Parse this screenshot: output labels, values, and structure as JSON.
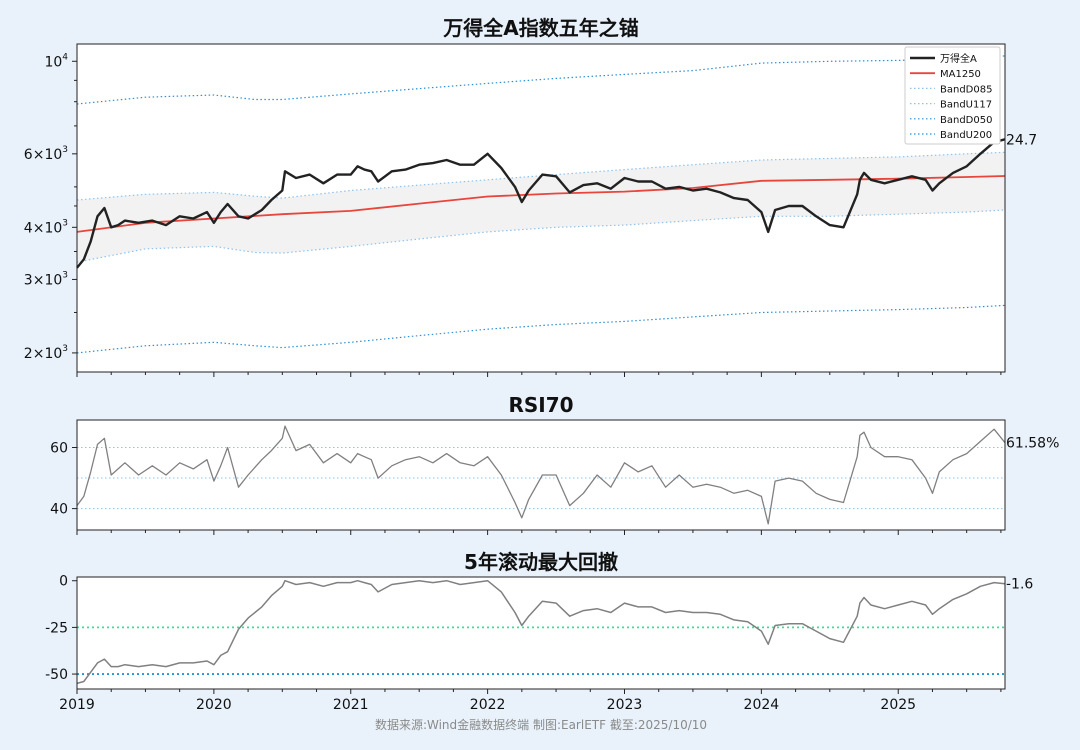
{
  "source_note": "数据来源:Wind金融数据终端  制图:EarlETF 截至:2025/10/10",
  "colors": {
    "index": "#222222",
    "ma": "#e8453c",
    "band_inner": "#8ec3ee",
    "band_outer": "#2a8fd6",
    "rsi": "#808080",
    "dd": "#808080",
    "dd_ref1": "#3ddc97",
    "dd_ref2": "#1f95d6",
    "band_fill": "#f2f2f2"
  },
  "chart_data": [
    {
      "type": "line",
      "title": "万得全A指数五年之锚",
      "yscale": "log",
      "ylim": [
        1800,
        11000
      ],
      "y_ticks": [
        {
          "value": 2000,
          "mant": "2",
          "exp": "3"
        },
        {
          "value": 3000,
          "mant": "3",
          "exp": "3"
        },
        {
          "value": 4000,
          "mant": "4",
          "exp": "3"
        },
        {
          "value": 6000,
          "mant": "6",
          "exp": "3"
        },
        {
          "value": 10000,
          "mant": "",
          "exp": "4"
        }
      ],
      "legend": [
        "万得全A",
        "MA1250",
        "BandD085",
        "BandU117",
        "BandD050",
        "BandU200"
      ],
      "legend_position": "top-right",
      "end_label": "24.7",
      "series": [
        {
          "name": "万得全A",
          "x": [
            2019.0,
            2019.05,
            2019.1,
            2019.15,
            2019.2,
            2019.25,
            2019.3,
            2019.35,
            2019.45,
            2019.55,
            2019.65,
            2019.75,
            2019.85,
            2019.95,
            2020.0,
            2020.05,
            2020.1,
            2020.18,
            2020.25,
            2020.35,
            2020.42,
            2020.5,
            2020.52,
            2020.6,
            2020.7,
            2020.8,
            2020.9,
            2021.0,
            2021.05,
            2021.1,
            2021.15,
            2021.2,
            2021.3,
            2021.4,
            2021.5,
            2021.6,
            2021.7,
            2021.8,
            2021.9,
            2022.0,
            2022.1,
            2022.2,
            2022.25,
            2022.3,
            2022.4,
            2022.5,
            2022.6,
            2022.7,
            2022.8,
            2022.9,
            2023.0,
            2023.1,
            2023.2,
            2023.3,
            2023.4,
            2023.5,
            2023.6,
            2023.7,
            2023.8,
            2023.9,
            2024.0,
            2024.05,
            2024.1,
            2024.2,
            2024.3,
            2024.4,
            2024.5,
            2024.6,
            2024.7,
            2024.72,
            2024.75,
            2024.8,
            2024.9,
            2025.0,
            2025.1,
            2025.2,
            2025.25,
            2025.3,
            2025.4,
            2025.5,
            2025.6,
            2025.7,
            2025.78
          ],
          "y": [
            3200,
            3350,
            3700,
            4250,
            4450,
            4000,
            4050,
            4150,
            4100,
            4150,
            4050,
            4250,
            4200,
            4350,
            4100,
            4350,
            4550,
            4250,
            4200,
            4400,
            4650,
            4900,
            5450,
            5250,
            5350,
            5100,
            5350,
            5350,
            5600,
            5500,
            5450,
            5150,
            5450,
            5500,
            5650,
            5700,
            5800,
            5650,
            5650,
            6000,
            5550,
            5000,
            4600,
            4900,
            5350,
            5300,
            4850,
            5050,
            5100,
            4950,
            5250,
            5150,
            5150,
            4950,
            5000,
            4900,
            4950,
            4850,
            4700,
            4650,
            4350,
            3900,
            4400,
            4500,
            4500,
            4250,
            4050,
            4000,
            4800,
            5200,
            5400,
            5200,
            5100,
            5200,
            5300,
            5200,
            4900,
            5100,
            5400,
            5600,
            6000,
            6400,
            6500
          ]
        },
        {
          "name": "MA1250",
          "x": [
            2019.0,
            2019.5,
            2020.0,
            2020.5,
            2021.0,
            2021.5,
            2022.0,
            2022.5,
            2023.0,
            2023.5,
            2024.0,
            2024.5,
            2025.0,
            2025.5,
            2025.78
          ],
          "y": [
            3900,
            4100,
            4200,
            4300,
            4380,
            4560,
            4740,
            4820,
            4870,
            4970,
            5170,
            5200,
            5230,
            5280,
            5310
          ]
        },
        {
          "name": "BandD085",
          "x": [
            2019.0,
            2019.5,
            2020.0,
            2020.3,
            2020.5,
            2021.0,
            2021.5,
            2022.0,
            2022.5,
            2023.0,
            2023.5,
            2024.0,
            2024.5,
            2025.0,
            2025.5,
            2025.78
          ],
          "y": [
            3300,
            3550,
            3600,
            3480,
            3470,
            3600,
            3750,
            3900,
            4000,
            4050,
            4150,
            4250,
            4250,
            4300,
            4350,
            4400
          ]
        },
        {
          "name": "BandU117",
          "x": [
            2019.0,
            2019.5,
            2020.0,
            2020.3,
            2020.5,
            2021.0,
            2021.5,
            2022.0,
            2022.5,
            2023.0,
            2023.5,
            2024.0,
            2024.5,
            2025.0,
            2025.5,
            2025.78
          ],
          "y": [
            4650,
            4800,
            4850,
            4750,
            4700,
            4900,
            5050,
            5200,
            5350,
            5500,
            5650,
            5800,
            5850,
            5900,
            6000,
            6050
          ]
        },
        {
          "name": "BandD050",
          "x": [
            2019.0,
            2019.5,
            2020.0,
            2020.3,
            2020.5,
            2021.0,
            2021.5,
            2022.0,
            2022.5,
            2023.0,
            2023.5,
            2024.0,
            2024.5,
            2025.0,
            2025.5,
            2025.78
          ],
          "y": [
            2000,
            2080,
            2120,
            2080,
            2060,
            2120,
            2200,
            2280,
            2340,
            2380,
            2440,
            2500,
            2520,
            2540,
            2570,
            2600
          ]
        },
        {
          "name": "BandU200",
          "x": [
            2019.0,
            2019.5,
            2020.0,
            2020.3,
            2020.5,
            2021.0,
            2021.5,
            2022.0,
            2022.5,
            2023.0,
            2023.5,
            2024.0,
            2024.5,
            2025.0,
            2025.5,
            2025.78
          ],
          "y": [
            7900,
            8200,
            8300,
            8100,
            8100,
            8350,
            8600,
            8850,
            9100,
            9300,
            9500,
            9900,
            10000,
            10050,
            10150,
            10300
          ]
        }
      ]
    },
    {
      "type": "line",
      "title": "RSI70",
      "ylim": [
        33,
        69
      ],
      "y_ticks": [
        40,
        60
      ],
      "ref_lines": [
        40,
        50,
        60
      ],
      "end_label": "61.58%",
      "series": [
        {
          "name": "RSI70",
          "x": [
            2019.0,
            2019.05,
            2019.1,
            2019.15,
            2019.2,
            2019.25,
            2019.3,
            2019.35,
            2019.45,
            2019.55,
            2019.65,
            2019.75,
            2019.85,
            2019.95,
            2020.0,
            2020.05,
            2020.1,
            2020.18,
            2020.25,
            2020.35,
            2020.42,
            2020.5,
            2020.52,
            2020.6,
            2020.7,
            2020.8,
            2020.9,
            2021.0,
            2021.05,
            2021.1,
            2021.15,
            2021.2,
            2021.3,
            2021.4,
            2021.5,
            2021.6,
            2021.7,
            2021.8,
            2021.9,
            2022.0,
            2022.1,
            2022.2,
            2022.25,
            2022.3,
            2022.4,
            2022.5,
            2022.6,
            2022.7,
            2022.8,
            2022.9,
            2023.0,
            2023.1,
            2023.2,
            2023.3,
            2023.4,
            2023.5,
            2023.6,
            2023.7,
            2023.8,
            2023.9,
            2024.0,
            2024.05,
            2024.1,
            2024.2,
            2024.3,
            2024.4,
            2024.5,
            2024.6,
            2024.7,
            2024.72,
            2024.75,
            2024.8,
            2024.9,
            2025.0,
            2025.1,
            2025.2,
            2025.25,
            2025.3,
            2025.4,
            2025.5,
            2025.6,
            2025.7,
            2025.78
          ],
          "y": [
            41,
            44,
            52,
            61,
            63,
            51,
            53,
            55,
            51,
            54,
            51,
            55,
            53,
            56,
            49,
            54,
            60,
            47,
            51,
            56,
            59,
            63,
            67,
            59,
            61,
            55,
            58,
            55,
            58,
            57,
            56,
            50,
            54,
            56,
            57,
            55,
            58,
            55,
            54,
            57,
            51,
            42,
            37,
            43,
            51,
            51,
            41,
            45,
            51,
            47,
            55,
            52,
            54,
            47,
            51,
            47,
            48,
            47,
            45,
            46,
            44,
            35,
            49,
            50,
            49,
            45,
            43,
            42,
            57,
            64,
            65,
            60,
            57,
            57,
            56,
            50,
            45,
            52,
            56,
            58,
            62,
            66,
            61.58
          ]
        }
      ]
    },
    {
      "type": "line",
      "title": "5年滚动最大回撤",
      "ylim": [
        -58,
        2
      ],
      "y_ticks": [
        0,
        -25,
        -50
      ],
      "ref_lines": [
        -25,
        -50
      ],
      "x_ticks": [
        "2019",
        "2020",
        "2021",
        "2022",
        "2023",
        "2024",
        "2025"
      ],
      "end_label": "-1.6",
      "series": [
        {
          "name": "5年滚动最大回撤",
          "x": [
            2019.0,
            2019.05,
            2019.1,
            2019.15,
            2019.2,
            2019.25,
            2019.3,
            2019.35,
            2019.45,
            2019.55,
            2019.65,
            2019.75,
            2019.85,
            2019.95,
            2020.0,
            2020.05,
            2020.1,
            2020.18,
            2020.25,
            2020.35,
            2020.42,
            2020.5,
            2020.52,
            2020.6,
            2020.7,
            2020.8,
            2020.9,
            2021.0,
            2021.05,
            2021.1,
            2021.15,
            2021.2,
            2021.3,
            2021.4,
            2021.5,
            2021.6,
            2021.7,
            2021.8,
            2021.9,
            2022.0,
            2022.1,
            2022.2,
            2022.25,
            2022.3,
            2022.4,
            2022.5,
            2022.6,
            2022.7,
            2022.8,
            2022.9,
            2023.0,
            2023.1,
            2023.2,
            2023.3,
            2023.4,
            2023.5,
            2023.6,
            2023.7,
            2023.8,
            2023.9,
            2024.0,
            2024.05,
            2024.1,
            2024.2,
            2024.3,
            2024.4,
            2024.5,
            2024.6,
            2024.7,
            2024.72,
            2024.75,
            2024.8,
            2024.9,
            2025.0,
            2025.1,
            2025.2,
            2025.25,
            2025.3,
            2025.4,
            2025.5,
            2025.6,
            2025.7,
            2025.78
          ],
          "y": [
            -55,
            -54,
            -49,
            -44,
            -42,
            -46,
            -46,
            -45,
            -46,
            -45,
            -46,
            -44,
            -44,
            -43,
            -45,
            -40,
            -38,
            -26,
            -20,
            -14,
            -8,
            -3,
            0,
            -2,
            -1,
            -3,
            -1,
            -1,
            0,
            -1,
            -2,
            -6,
            -2,
            -1,
            0,
            -1,
            0,
            -2,
            -1,
            0,
            -6,
            -17,
            -24,
            -19,
            -11,
            -12,
            -19,
            -16,
            -15,
            -17,
            -12,
            -14,
            -14,
            -17,
            -16,
            -17,
            -17,
            -18,
            -21,
            -22,
            -27,
            -34,
            -24,
            -23,
            -23,
            -27,
            -31,
            -33,
            -19,
            -12,
            -9,
            -13,
            -15,
            -13,
            -11,
            -13,
            -18,
            -15,
            -10,
            -7,
            -3,
            -1,
            -1.6
          ]
        }
      ]
    }
  ]
}
